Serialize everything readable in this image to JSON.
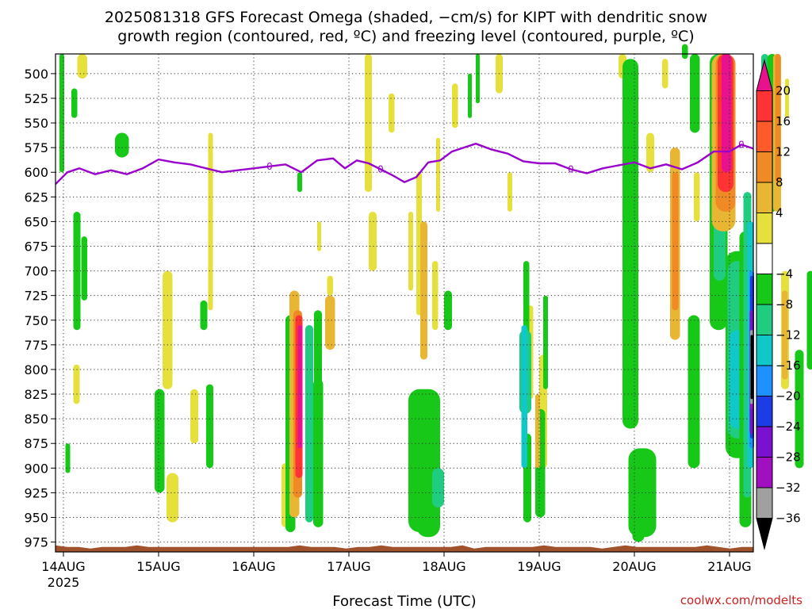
{
  "title": {
    "line1": "2025081318 GFS Forecast Omega (shaded, −cm/s) for KIPT with dendritic snow",
    "line2": "growth region (contoured, red, ºC) and freezing level (contoured, purple, ºC)"
  },
  "credit": "coolwx.com/modelts",
  "chart_data": {
    "type": "heatmap",
    "xlabel": "Forecast Time (UTC)",
    "ylabel": "",
    "y_scale": "pressure (hPa, decreasing upward)",
    "ylim": [
      985,
      480
    ],
    "xlim": [
      "2025-08-13T22:00Z",
      "2025-08-21T06:00Z"
    ],
    "x_ticks": [
      {
        "label": "14AUG",
        "sublabel": "2025",
        "time": "2025-08-14T00:00Z"
      },
      {
        "label": "15AUG",
        "sublabel": "",
        "time": "2025-08-15T00:00Z"
      },
      {
        "label": "16AUG",
        "sublabel": "",
        "time": "2025-08-16T00:00Z"
      },
      {
        "label": "17AUG",
        "sublabel": "",
        "time": "2025-08-17T00:00Z"
      },
      {
        "label": "18AUG",
        "sublabel": "",
        "time": "2025-08-18T00:00Z"
      },
      {
        "label": "19AUG",
        "sublabel": "",
        "time": "2025-08-19T00:00Z"
      },
      {
        "label": "20AUG",
        "sublabel": "",
        "time": "2025-08-20T00:00Z"
      },
      {
        "label": "21AUG",
        "sublabel": "",
        "time": "2025-08-21T00:00Z"
      }
    ],
    "y_ticks": [
      "500",
      "525",
      "550",
      "575",
      "600",
      "625",
      "650",
      "675",
      "700",
      "725",
      "750",
      "775",
      "800",
      "825",
      "850",
      "875",
      "900",
      "925",
      "950",
      "975"
    ],
    "grid": true,
    "colorbar": {
      "position": "right",
      "labels": [
        "20",
        "16",
        "12",
        "8",
        "4",
        "−4",
        "−8",
        "−12",
        "−16",
        "−20",
        "−24",
        "−28",
        "−32",
        "−36"
      ],
      "bins": [
        {
          "color": "#e8128c",
          "range": "> 20"
        },
        {
          "color": "#ff3333",
          "range": "16 to 20"
        },
        {
          "color": "#ff5a2a",
          "range": "12 to 16"
        },
        {
          "color": "#f08a24",
          "range": "8 to 12"
        },
        {
          "color": "#e8b632",
          "range": "4 to 8"
        },
        {
          "color": "#e6e03c",
          "range": "-4 to 4 (upper)"
        },
        {
          "color": "#ffffff",
          "range": "-4 to 4"
        },
        {
          "color": "#18c818",
          "range": "-8 to -4"
        },
        {
          "color": "#20cc80",
          "range": "-12 to -8"
        },
        {
          "color": "#10c8c8",
          "range": "-16 to -12"
        },
        {
          "color": "#1e90ff",
          "range": "-20 to -16"
        },
        {
          "color": "#1e3ce6",
          "range": "-24 to -20"
        },
        {
          "color": "#7a10d0",
          "range": "-28 to -24"
        },
        {
          "color": "#a010c0",
          "range": "-32 to -28"
        },
        {
          "color": "#a0a0a0",
          "range": "-36 to -32"
        },
        {
          "color": "#000000",
          "range": "< -36"
        }
      ]
    },
    "freezing_level": {
      "color": "#9900cc",
      "label": "0",
      "points": [
        [
          "2025-08-13T22:00Z",
          612
        ],
        [
          "2025-08-14T01:00Z",
          600
        ],
        [
          "2025-08-14T04:00Z",
          596
        ],
        [
          "2025-08-14T08:00Z",
          602
        ],
        [
          "2025-08-14T12:00Z",
          598
        ],
        [
          "2025-08-14T16:00Z",
          602
        ],
        [
          "2025-08-14T20:00Z",
          596
        ],
        [
          "2025-08-15T00:00Z",
          587
        ],
        [
          "2025-08-15T04:00Z",
          590
        ],
        [
          "2025-08-15T08:00Z",
          592
        ],
        [
          "2025-08-15T12:00Z",
          596
        ],
        [
          "2025-08-15T16:00Z",
          600
        ],
        [
          "2025-08-15T20:00Z",
          598
        ],
        [
          "2025-08-16T00:00Z",
          596
        ],
        [
          "2025-08-16T04:00Z",
          594
        ],
        [
          "2025-08-16T08:00Z",
          592
        ],
        [
          "2025-08-16T12:00Z",
          600
        ],
        [
          "2025-08-16T16:00Z",
          588
        ],
        [
          "2025-08-16T20:00Z",
          586
        ],
        [
          "2025-08-16T23:00Z",
          596
        ],
        [
          "2025-08-17T02:00Z",
          588
        ],
        [
          "2025-08-17T05:00Z",
          591
        ],
        [
          "2025-08-17T08:00Z",
          597
        ],
        [
          "2025-08-17T11:00Z",
          603
        ],
        [
          "2025-08-17T14:00Z",
          610
        ],
        [
          "2025-08-17T17:00Z",
          605
        ],
        [
          "2025-08-17T20:00Z",
          590
        ],
        [
          "2025-08-17T23:00Z",
          588
        ],
        [
          "2025-08-18T02:00Z",
          579
        ],
        [
          "2025-08-18T05:00Z",
          575
        ],
        [
          "2025-08-18T08:00Z",
          571
        ],
        [
          "2025-08-18T12:00Z",
          577
        ],
        [
          "2025-08-18T16:00Z",
          581
        ],
        [
          "2025-08-18T20:00Z",
          589
        ],
        [
          "2025-08-19T00:00Z",
          591
        ],
        [
          "2025-08-19T04:00Z",
          591
        ],
        [
          "2025-08-19T08:00Z",
          597
        ],
        [
          "2025-08-19T12:00Z",
          601
        ],
        [
          "2025-08-19T16:00Z",
          596
        ],
        [
          "2025-08-19T20:00Z",
          593
        ],
        [
          "2025-08-20T00:00Z",
          590
        ],
        [
          "2025-08-20T04:00Z",
          596
        ],
        [
          "2025-08-20T08:00Z",
          592
        ],
        [
          "2025-08-20T12:00Z",
          597
        ],
        [
          "2025-08-20T16:00Z",
          590
        ],
        [
          "2025-08-20T20:00Z",
          579
        ],
        [
          "2025-08-21T00:00Z",
          579
        ],
        [
          "2025-08-21T03:00Z",
          572
        ],
        [
          "2025-08-21T06:00Z",
          576
        ]
      ]
    },
    "dendritic_growth_region": {
      "color": "#ff3333",
      "present": false
    },
    "terrain": {
      "color": "#a0522d",
      "surface_pressure_hPa": 980
    }
  }
}
